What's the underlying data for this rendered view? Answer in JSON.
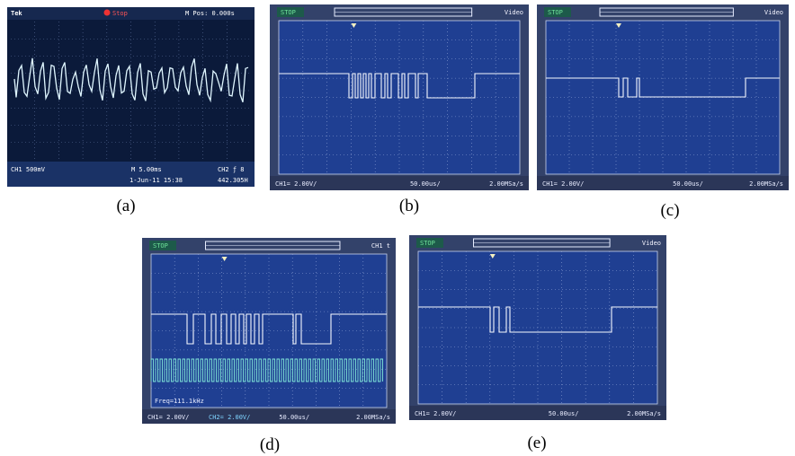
{
  "panel_a": {
    "caption": "(a)",
    "brand": "Tek",
    "state": "Stop",
    "position": "M Pos: 0.000s",
    "channel": "CH1 500mV",
    "timebase": "M 5.00ms",
    "trigger": "CH2 ƒ 8",
    "date": "1-Jun-11 15:38",
    "frequency": "442.305H"
  },
  "panel_b": {
    "caption": "(b)",
    "state": "STOP",
    "trigger": "Video",
    "channel": "CH1= 2.00V/",
    "timebase": "50.00us/",
    "sample_rate": "2.00MSa/s"
  },
  "panel_c": {
    "caption": "(c)",
    "state": "STOP",
    "trigger": "Video",
    "channel": "CH1= 2.00V/",
    "timebase": "50.00us/",
    "sample_rate": "2.00MSa/s"
  },
  "panel_d": {
    "caption": "(d)",
    "state": "STOP",
    "trigger": "CH1 t",
    "channel": "CH1= 2.00V/",
    "channel2": "CH2= 2.00V/",
    "timebase": "50.00us/",
    "sample_rate": "2.00MSa/s",
    "frequency": "Freq=111.1kHz"
  },
  "panel_e": {
    "caption": "(e)",
    "state": "STOP",
    "trigger": "Video",
    "channel": "CH1= 2.00V/",
    "timebase": "50.00us/",
    "sample_rate": "2.00MSa/s"
  }
}
